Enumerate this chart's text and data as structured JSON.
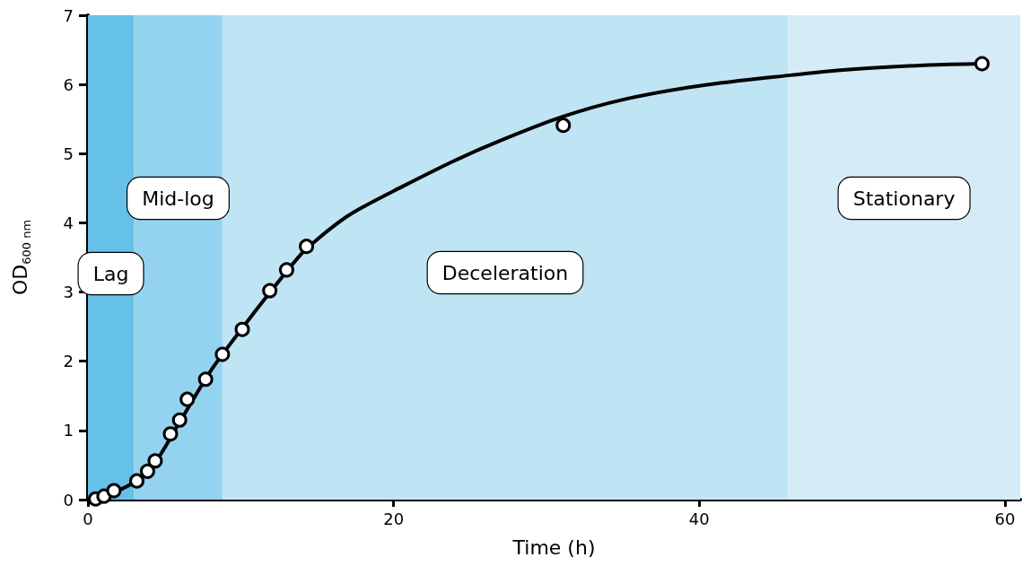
{
  "chart_data": {
    "type": "scatter",
    "xlabel": "Time (h)",
    "ylabel": "OD$_{600 nm}$",
    "xlim": [
      0,
      61
    ],
    "xticks": [
      0,
      20,
      40,
      60
    ],
    "ylim": [
      0,
      7
    ],
    "yticks": [
      0,
      1,
      2,
      3,
      4,
      5,
      6,
      7
    ],
    "series": [
      {
        "type": "line",
        "color": "#000000",
        "marker": "none",
        "line_style": "solid",
        "x": [
          0,
          2,
          4,
          6,
          8,
          10,
          12,
          14,
          15,
          16,
          17,
          18,
          20,
          24,
          27,
          31,
          35,
          40,
          45.8,
          50,
          55,
          58.5
        ],
        "values": [
          0,
          0.13,
          0.42,
          1.12,
          1.85,
          2.45,
          3.02,
          3.56,
          3.76,
          3.94,
          4.1,
          4.23,
          4.46,
          4.9,
          5.19,
          5.53,
          5.78,
          5.98,
          6.13,
          6.22,
          6.28,
          6.3
        ]
      },
      {
        "color": "#ffffff",
        "marker": "circle",
        "x": [
          0.5,
          1.05,
          1.7,
          3.2,
          3.9,
          4.4,
          5.4,
          6.0,
          6.5,
          7.7,
          8.8,
          10.1,
          11.9,
          13.0,
          14.3,
          31.1,
          58.5
        ],
        "values": [
          0.01,
          0.05,
          0.13,
          0.27,
          0.41,
          0.56,
          0.95,
          1.15,
          1.45,
          1.74,
          2.1,
          2.46,
          3.02,
          3.32,
          3.66,
          5.41,
          6.3
        ]
      }
    ],
    "bands": [
      {
        "axis": "x",
        "from": 0,
        "to": 3,
        "label": "Lag",
        "color": "#66c1e8"
      },
      {
        "axis": "x",
        "from": 3,
        "to": 8.8,
        "label": "Mid-log",
        "color": "#94d3ef"
      },
      {
        "axis": "x",
        "from": 8.8,
        "to": 45.8,
        "label": "Deceleration",
        "color": "#bfe5f5"
      },
      {
        "axis": "x",
        "from": 45.8,
        "to": 61,
        "label": "Stationary",
        "color": "#d5ecf8"
      }
    ]
  }
}
